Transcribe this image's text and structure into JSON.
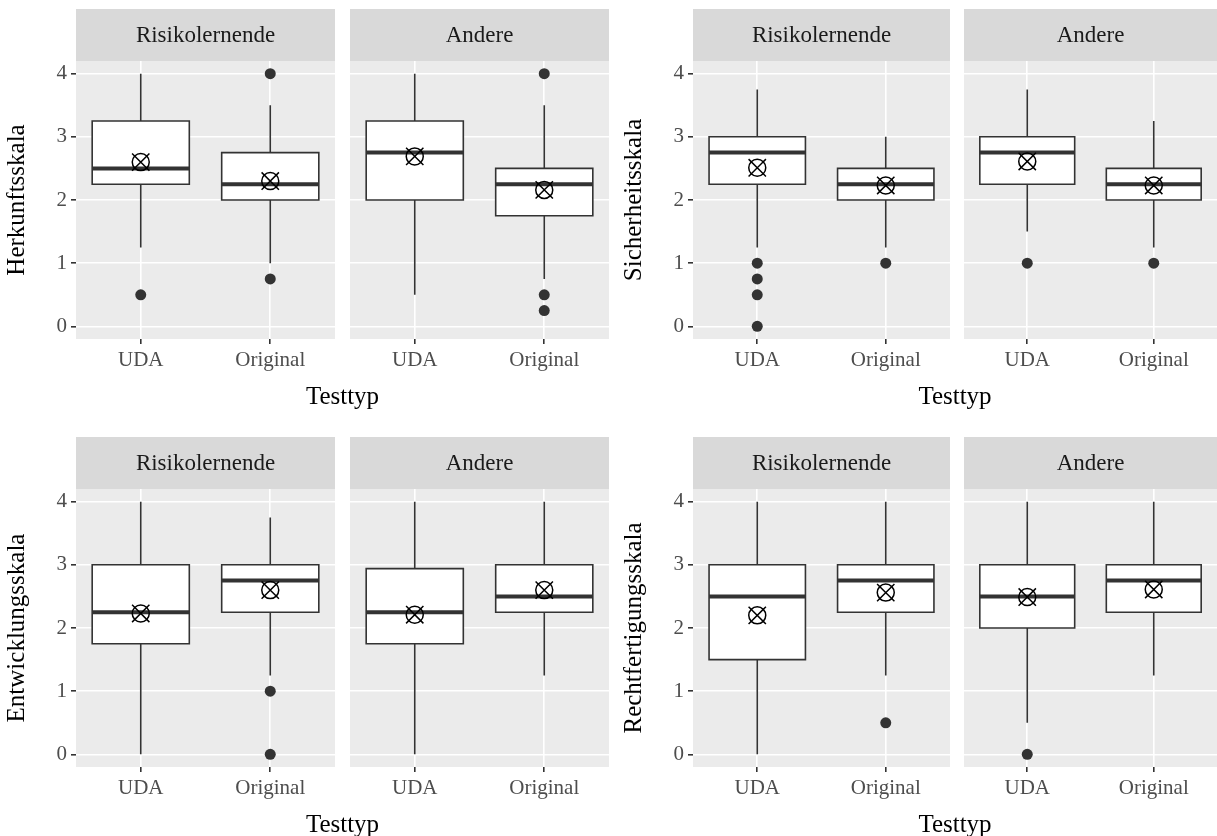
{
  "chart_data": [
    {
      "type": "box",
      "title": "Risikolernende",
      "ylabel": "Herkunftsskala",
      "xlabel": "Testtyp",
      "categories": [
        "UDA",
        "Original"
      ],
      "ylim": [
        -0.2,
        4.2
      ],
      "yticks": [
        0,
        1,
        2,
        3,
        4
      ],
      "grid": true,
      "boxes": [
        {
          "low": 1.25,
          "q1": 2.25,
          "median": 2.5,
          "q3": 3.25,
          "high": 4,
          "mean": 2.6,
          "outliers": [
            0.5
          ]
        },
        {
          "low": 1,
          "q1": 2,
          "median": 2.25,
          "q3": 2.75,
          "high": 3.5,
          "mean": 2.3,
          "outliers": [
            0.75,
            4
          ]
        }
      ]
    },
    {
      "type": "box",
      "title": "Andere",
      "categories": [
        "UDA",
        "Original"
      ],
      "ylim": [
        -0.2,
        4.2
      ],
      "yticks": [
        0,
        1,
        2,
        3,
        4
      ],
      "grid": true,
      "tick_labels": "x",
      "boxes": [
        {
          "low": 0.5,
          "q1": 2,
          "median": 2.75,
          "q3": 3.25,
          "high": 4,
          "mean": 2.69
        },
        {
          "low": 0.75,
          "q1": 1.75,
          "median": 2.25,
          "q3": 2.5,
          "high": 3.5,
          "mean": 2.16,
          "outliers": [
            0.5,
            0.25,
            4
          ]
        }
      ]
    },
    {
      "type": "box",
      "title": "Risikolernende",
      "ylabel": "Sicherheitsskala",
      "xlabel": "Testtyp",
      "categories": [
        "UDA",
        "Original"
      ],
      "ylim": [
        -0.2,
        4.2
      ],
      "yticks": [
        0,
        1,
        2,
        3,
        4
      ],
      "grid": true,
      "boxes": [
        {
          "low": 1.25,
          "q1": 2.25,
          "median": 2.75,
          "q3": 3,
          "high": 3.75,
          "mean": 2.51,
          "outliers": [
            1,
            0.75,
            0.5,
            0
          ]
        },
        {
          "low": 1.25,
          "q1": 2,
          "median": 2.25,
          "q3": 2.5,
          "high": 3,
          "mean": 2.23,
          "outliers": [
            1
          ]
        }
      ]
    },
    {
      "type": "box",
      "title": "Andere",
      "categories": [
        "UDA",
        "Original"
      ],
      "ylim": [
        -0.2,
        4.2
      ],
      "yticks": [
        0,
        1,
        2,
        3,
        4
      ],
      "grid": true,
      "tick_labels": "x",
      "boxes": [
        {
          "low": 1.5,
          "q1": 2.25,
          "median": 2.75,
          "q3": 3,
          "high": 3.75,
          "mean": 2.61,
          "outliers": [
            1
          ]
        },
        {
          "low": 1.25,
          "q1": 2,
          "median": 2.25,
          "q3": 2.5,
          "high": 3.25,
          "mean": 2.23,
          "outliers": [
            1
          ]
        }
      ]
    },
    {
      "type": "box",
      "title": "Risikolernende",
      "ylabel": "Entwicklungsskala",
      "xlabel": "Testtyp",
      "categories": [
        "UDA",
        "Original"
      ],
      "ylim": [
        -0.2,
        4.2
      ],
      "yticks": [
        0,
        1,
        2,
        3,
        4
      ],
      "grid": true,
      "boxes": [
        {
          "low": 0,
          "q1": 1.75,
          "median": 2.25,
          "q3": 3,
          "high": 4,
          "mean": 2.23
        },
        {
          "low": 1.25,
          "q1": 2.25,
          "median": 2.75,
          "q3": 3,
          "high": 3.75,
          "mean": 2.6,
          "outliers": [
            1,
            0
          ]
        }
      ]
    },
    {
      "type": "box",
      "title": "Andere",
      "categories": [
        "UDA",
        "Original"
      ],
      "ylim": [
        -0.2,
        4.2
      ],
      "yticks": [
        0,
        1,
        2,
        3,
        4
      ],
      "grid": true,
      "tick_labels": "x",
      "boxes": [
        {
          "low": 0,
          "q1": 1.75,
          "median": 2.25,
          "q3": 2.94,
          "high": 4,
          "mean": 2.21
        },
        {
          "low": 1.25,
          "q1": 2.25,
          "median": 2.5,
          "q3": 3,
          "high": 4,
          "mean": 2.6
        }
      ]
    },
    {
      "type": "box",
      "title": "Risikolernende",
      "ylabel": "Rechtfertigungsskala",
      "xlabel": "Testtyp",
      "categories": [
        "UDA",
        "Original"
      ],
      "ylim": [
        -0.2,
        4.2
      ],
      "yticks": [
        0,
        1,
        2,
        3,
        4
      ],
      "grid": true,
      "boxes": [
        {
          "low": 0,
          "q1": 1.5,
          "median": 2.5,
          "q3": 3,
          "high": 4,
          "mean": 2.2
        },
        {
          "low": 1.25,
          "q1": 2.25,
          "median": 2.75,
          "q3": 3,
          "high": 4,
          "mean": 2.56,
          "outliers": [
            0.5
          ]
        }
      ]
    },
    {
      "type": "box",
      "title": "Andere",
      "categories": [
        "UDA",
        "Original"
      ],
      "ylim": [
        -0.2,
        4.2
      ],
      "yticks": [
        0,
        1,
        2,
        3,
        4
      ],
      "grid": true,
      "tick_labels": "x",
      "boxes": [
        {
          "low": 0.5,
          "q1": 2,
          "median": 2.5,
          "q3": 3,
          "high": 4,
          "mean": 2.49,
          "outliers": [
            0
          ]
        },
        {
          "low": 1.25,
          "q1": 2.25,
          "median": 2.75,
          "q3": 3,
          "high": 4,
          "mean": 2.61
        }
      ]
    }
  ]
}
